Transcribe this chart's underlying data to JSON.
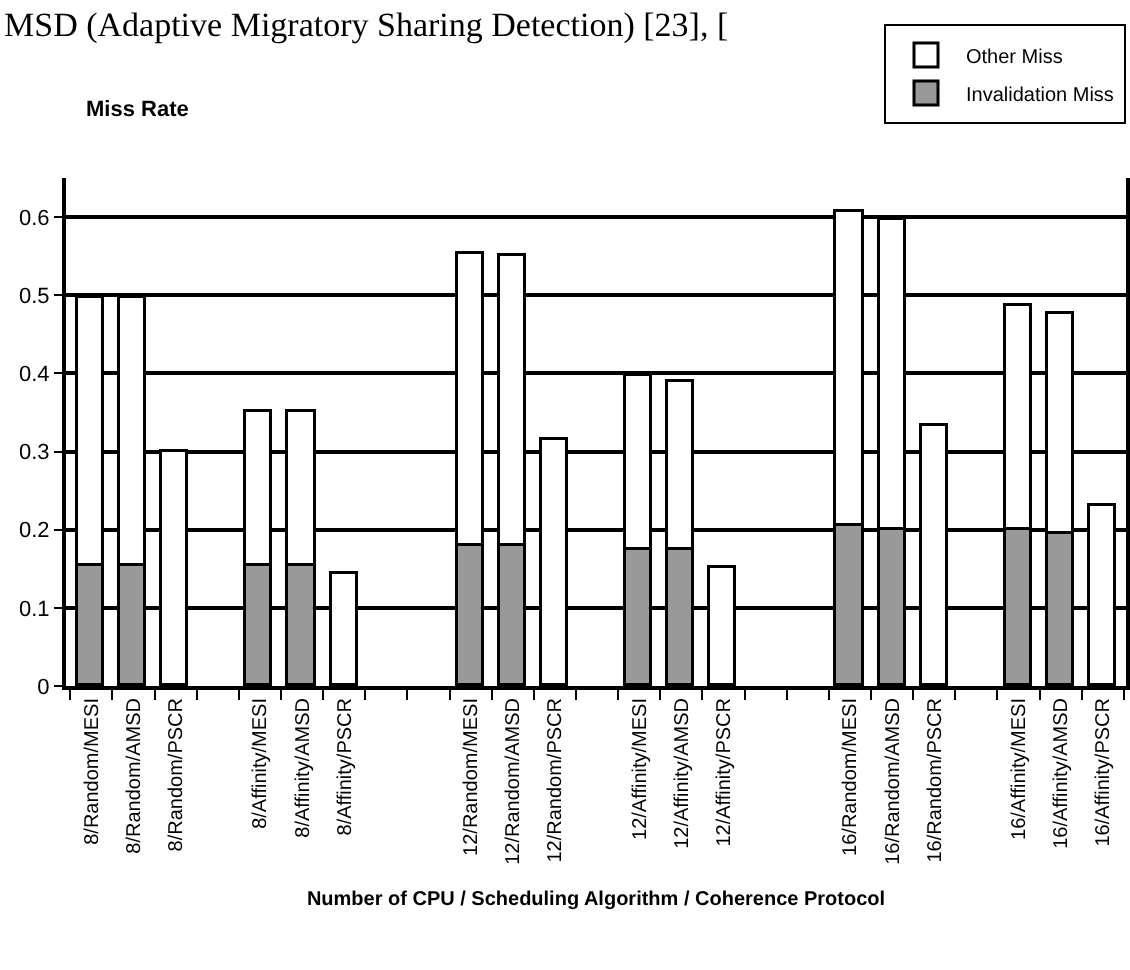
{
  "chart_data": {
    "type": "bar",
    "stacked": true,
    "categories": [
      "8/Random/MESI",
      "8/Random/AMSD",
      "8/Random/PSCR",
      null,
      "8/Affinity/MESI",
      "8/Affinity/AMSD",
      "8/Affinity/PSCR",
      null,
      null,
      "12/Random/MESI",
      "12/Random/AMSD",
      "12/Random/PSCR",
      null,
      "12/Affinity/MESI",
      "12/Affinity/AMSD",
      "12/Affinity/PSCR",
      null,
      null,
      "16/Random/MESI",
      "16/Random/AMSD",
      "16/Random/PSCR",
      null,
      "16/Affinity/MESI",
      "16/Affinity/AMSD",
      "16/Affinity/PSCR"
    ],
    "series": [
      {
        "name": "Invalidation Miss",
        "color": "#999999",
        "values": [
          0.153,
          0.153,
          null,
          null,
          0.153,
          0.153,
          null,
          null,
          null,
          0.179,
          0.179,
          null,
          null,
          0.174,
          0.174,
          null,
          null,
          null,
          0.204,
          0.2,
          null,
          null,
          0.2,
          0.195,
          null
        ]
      },
      {
        "name": "Other Miss",
        "color": "#ffffff",
        "values": [
          0.343,
          0.343,
          0.3,
          null,
          0.197,
          0.197,
          0.143,
          null,
          null,
          0.375,
          0.37,
          0.314,
          null,
          0.222,
          0.215,
          0.152,
          null,
          null,
          0.402,
          0.396,
          0.333,
          null,
          0.286,
          0.28,
          0.231
        ]
      }
    ],
    "ylabel": "Miss Rate",
    "xlabel": "Number of CPU / Scheduling Algorithm / Coherence Protocol",
    "annotations": [
      "MSD (Adaptive Migratory Sharing Detection) [23], ["
    ],
    "ylim": [
      0,
      0.65
    ],
    "yticks": [
      0,
      0.1,
      0.2,
      0.3,
      0.4,
      0.5,
      0.6
    ],
    "grid": "y",
    "legend": "top right"
  }
}
